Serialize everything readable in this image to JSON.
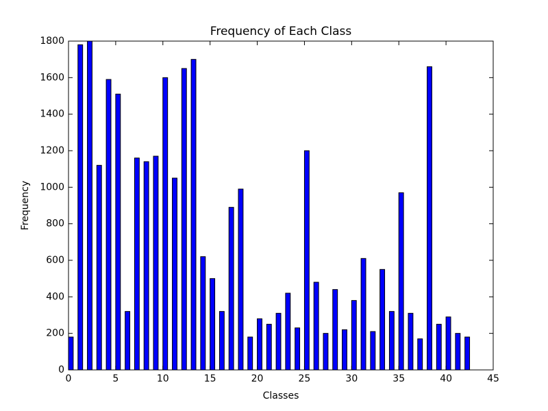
{
  "chart_data": {
    "type": "bar",
    "title": "Frequency of Each Class",
    "x_label": "Classes",
    "y_label": "Frequency",
    "x": [
      0,
      1,
      2,
      3,
      4,
      5,
      6,
      7,
      8,
      9,
      10,
      11,
      12,
      13,
      14,
      15,
      16,
      17,
      18,
      19,
      20,
      21,
      22,
      23,
      24,
      25,
      26,
      27,
      28,
      29,
      30,
      31,
      32,
      33,
      34,
      35,
      36,
      37,
      38,
      39,
      40,
      41,
      42
    ],
    "values": [
      180,
      1780,
      1800,
      1120,
      1590,
      1510,
      320,
      1160,
      1140,
      1170,
      1600,
      1050,
      1650,
      1700,
      620,
      500,
      320,
      890,
      990,
      180,
      280,
      250,
      310,
      420,
      230,
      1200,
      480,
      200,
      440,
      220,
      380,
      610,
      210,
      550,
      320,
      970,
      310,
      170,
      1660,
      250,
      290,
      200,
      180
    ],
    "color": "#0000ff",
    "xlim": [
      0,
      45
    ],
    "xticks": [
      0,
      5,
      10,
      15,
      20,
      25,
      30,
      35,
      40,
      45
    ],
    "ylim": [
      0,
      1800
    ],
    "yticks": [
      0,
      200,
      400,
      600,
      800,
      1000,
      1200,
      1400,
      1600,
      1800
    ],
    "grid": false
  }
}
